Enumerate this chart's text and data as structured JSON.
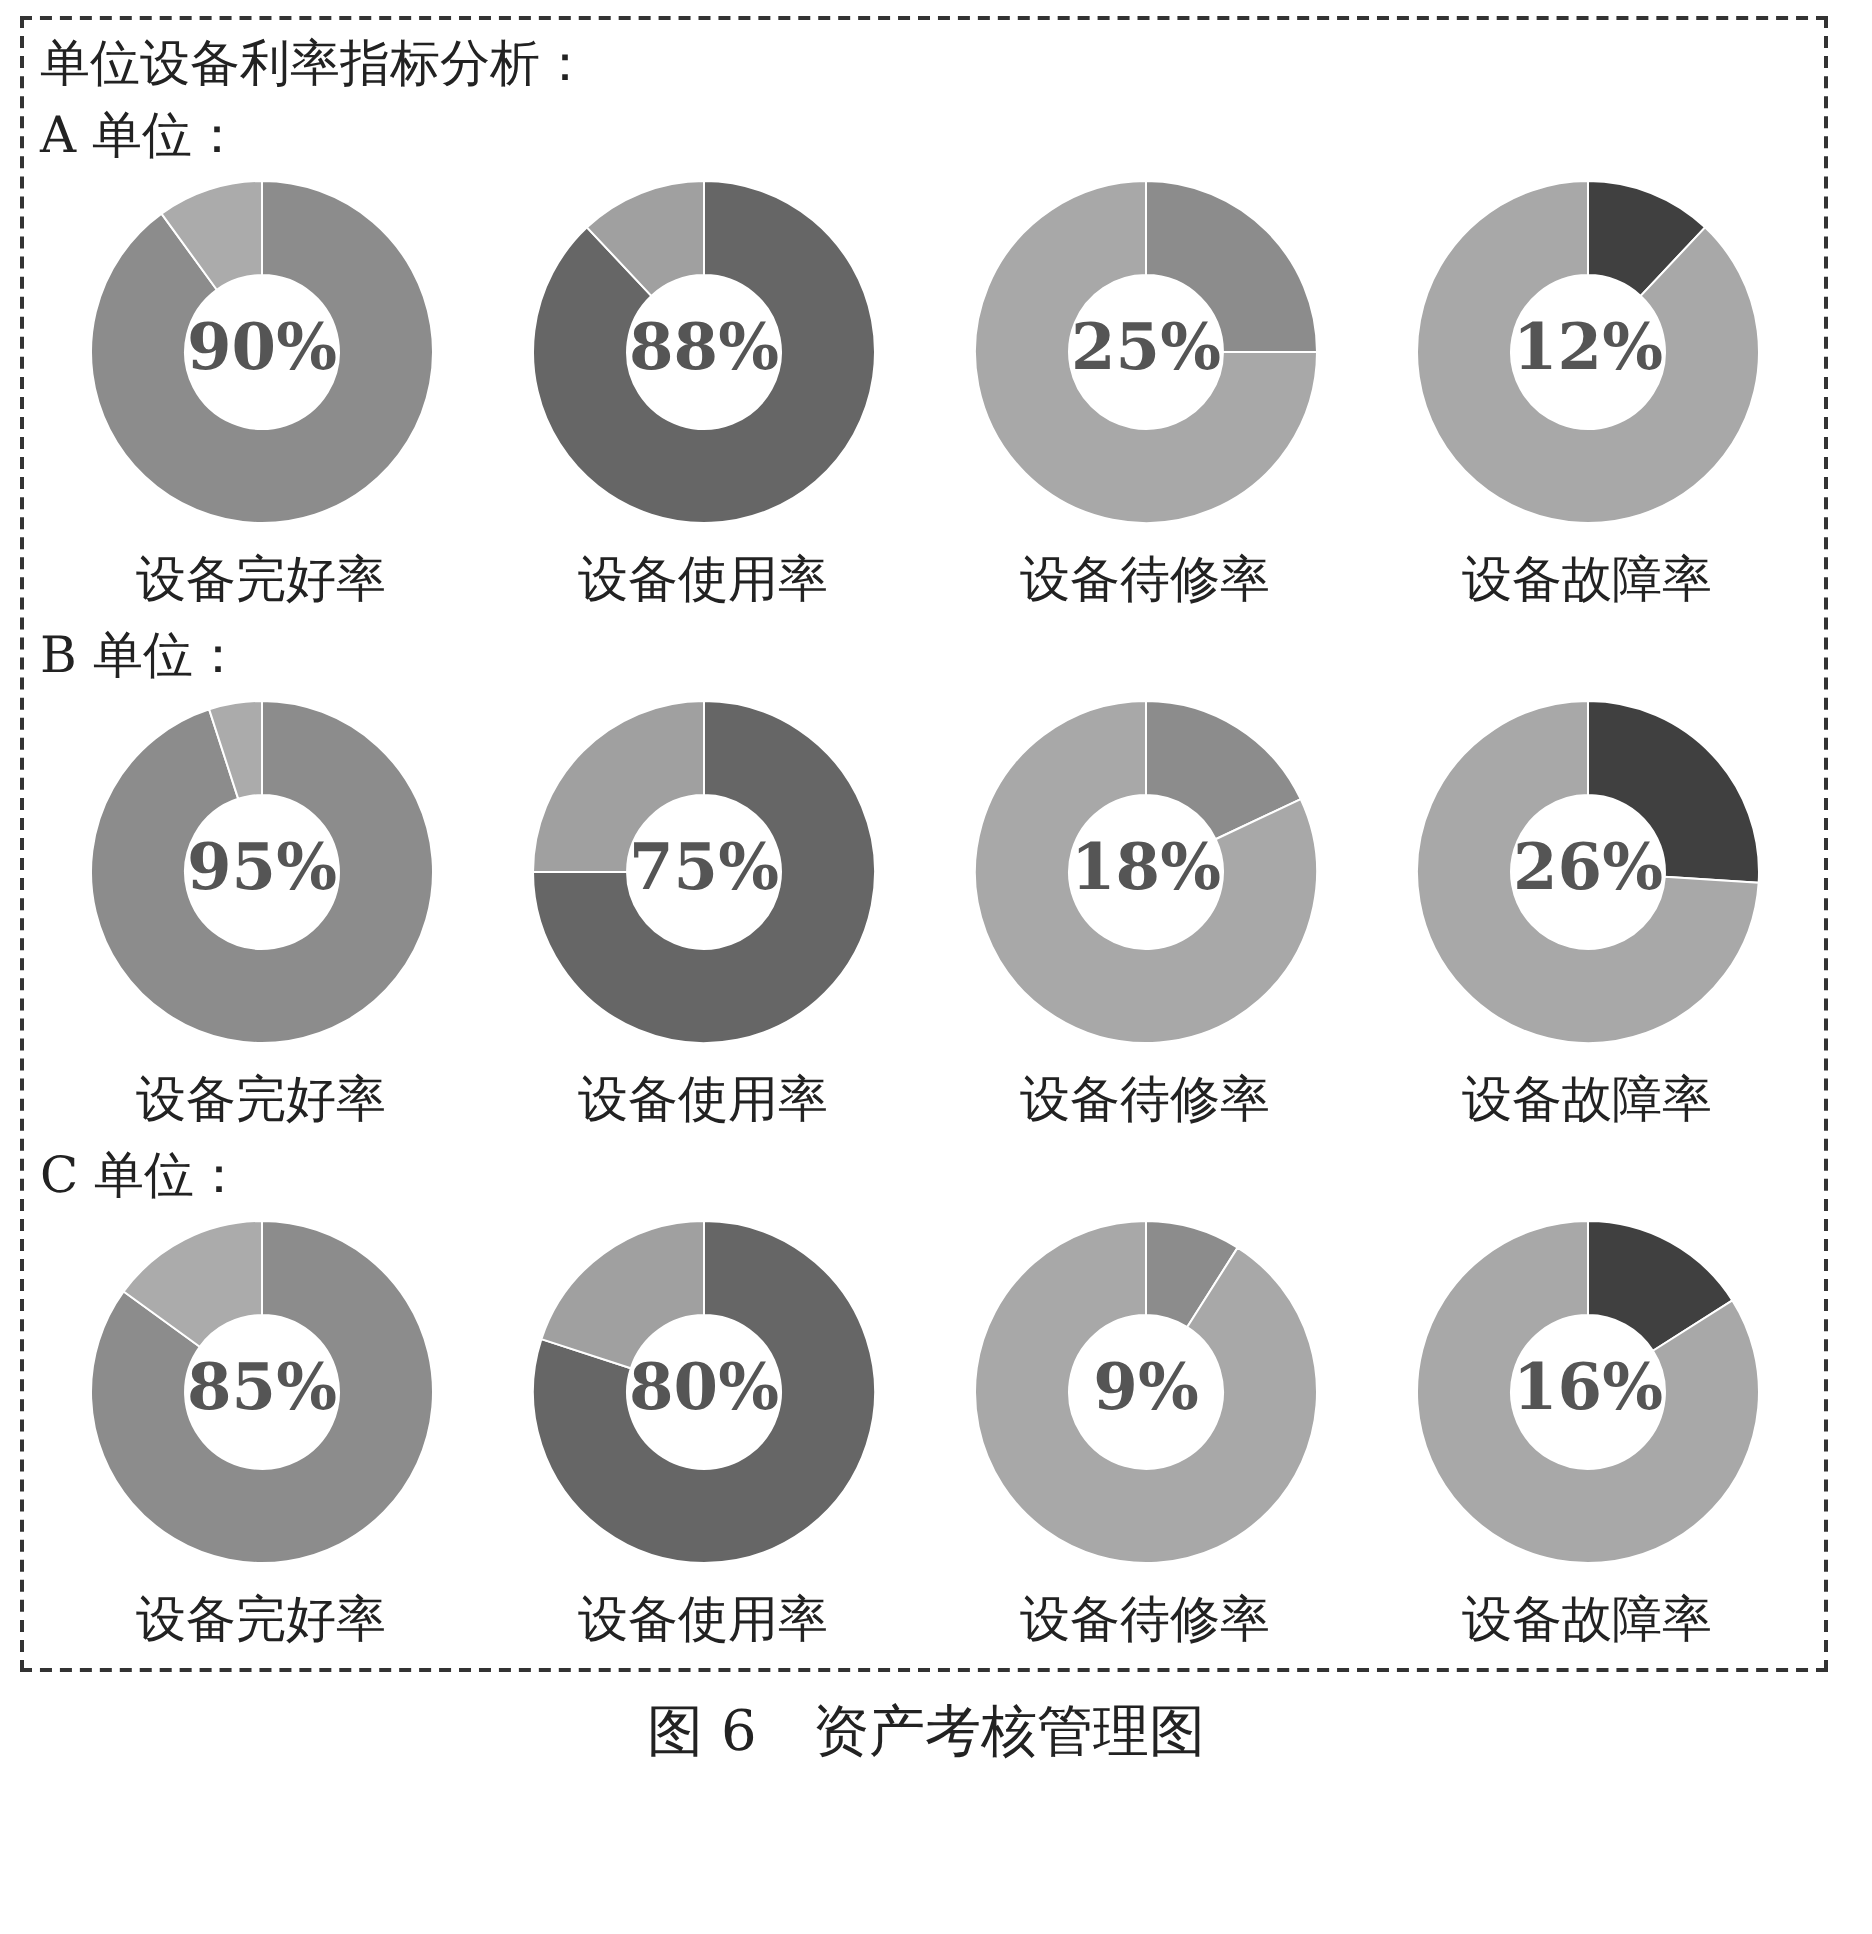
{
  "chart_data": [
    {
      "type": "donut",
      "title": "单位设备利率指标分析：",
      "subtitle": "A 单位：",
      "xlabel": "设备完好率",
      "categories": [
        null,
        null
      ],
      "values": [
        90,
        10
      ],
      "colors": [
        "#8c8c8c",
        "#ababab"
      ],
      "value_labels": [
        "90%",
        null
      ]
    },
    {
      "type": "donut",
      "xlabel": "设备使用率",
      "categories": [
        null,
        null
      ],
      "values": [
        88,
        12
      ],
      "colors": [
        "#666666",
        "#a0a0a0"
      ],
      "value_labels": [
        "88%",
        null
      ]
    },
    {
      "type": "donut",
      "xlabel": "设备待修率",
      "categories": [
        null,
        null
      ],
      "values": [
        25,
        75
      ],
      "colors": [
        "#8c8c8c",
        "#a8a8a8"
      ],
      "value_labels": [
        "25%",
        null
      ]
    },
    {
      "type": "donut",
      "xlabel": "设备故障率",
      "categories": [
        null,
        null
      ],
      "values": [
        12,
        88
      ],
      "colors": [
        "#404040",
        "#a8a8a8"
      ],
      "value_labels": [
        "12%",
        null
      ]
    },
    {
      "type": "donut",
      "subtitle": "B 单位：",
      "xlabel": "设备完好率",
      "categories": [
        null,
        null
      ],
      "values": [
        95,
        5
      ],
      "colors": [
        "#8c8c8c",
        "#ababab"
      ],
      "value_labels": [
        "95%",
        null
      ]
    },
    {
      "type": "donut",
      "xlabel": "设备使用率",
      "categories": [
        null,
        null
      ],
      "values": [
        75,
        25
      ],
      "colors": [
        "#666666",
        "#a0a0a0"
      ],
      "value_labels": [
        "75%",
        null
      ]
    },
    {
      "type": "donut",
      "xlabel": "设备待修率",
      "categories": [
        null,
        null
      ],
      "values": [
        18,
        82
      ],
      "colors": [
        "#8c8c8c",
        "#a8a8a8"
      ],
      "value_labels": [
        "18%",
        null
      ]
    },
    {
      "type": "donut",
      "xlabel": "设备故障率",
      "categories": [
        null,
        null
      ],
      "values": [
        26,
        74
      ],
      "colors": [
        "#404040",
        "#a8a8a8"
      ],
      "value_labels": [
        "26%",
        null
      ]
    },
    {
      "type": "donut",
      "subtitle": "C 单位：",
      "xlabel": "设备完好率",
      "categories": [
        null,
        null
      ],
      "values": [
        85,
        15
      ],
      "colors": [
        "#8c8c8c",
        "#ababab"
      ],
      "value_labels": [
        "85%",
        null
      ]
    },
    {
      "type": "donut",
      "xlabel": "设备使用率",
      "categories": [
        null,
        null
      ],
      "values": [
        80,
        20
      ],
      "colors": [
        "#666666",
        "#a0a0a0"
      ],
      "value_labels": [
        "80%",
        null
      ]
    },
    {
      "type": "donut",
      "xlabel": "设备待修率",
      "categories": [
        null,
        null
      ],
      "values": [
        9,
        91
      ],
      "colors": [
        "#8c8c8c",
        "#a8a8a8"
      ],
      "value_labels": [
        "9%",
        null
      ]
    },
    {
      "type": "donut",
      "xlabel": "设备故障率",
      "categories": [
        null,
        null
      ],
      "values": [
        16,
        84
      ],
      "colors": [
        "#404040",
        "#a8a8a8"
      ],
      "value_labels": [
        "16%",
        null
      ],
      "annotations": [
        "图 6　资产考核管理图"
      ]
    }
  ]
}
